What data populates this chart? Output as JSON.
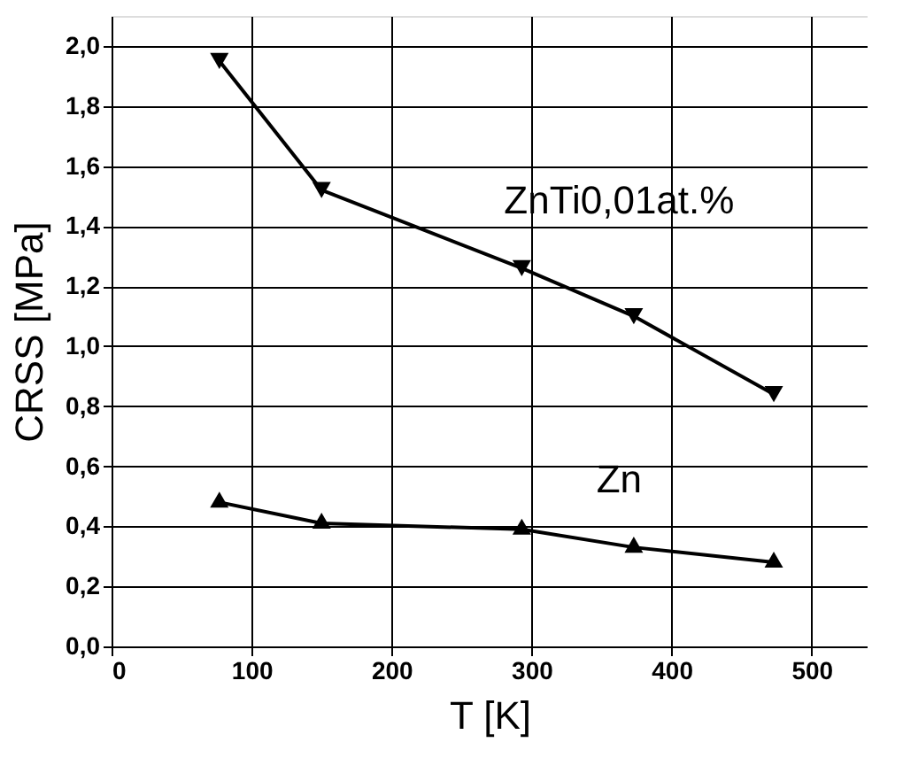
{
  "chart_data": {
    "type": "line",
    "xlabel": "T [K]",
    "ylabel": "CRSS [MPa]",
    "x": [
      77,
      150,
      293,
      373,
      473
    ],
    "series": [
      {
        "name": "ZnTi0,01at.%",
        "color": "#000000",
        "marker": "triangle-down",
        "values": [
          1.95,
          1.52,
          1.26,
          1.1,
          0.84
        ]
      },
      {
        "name": "Zn",
        "color": "#000000",
        "marker": "triangle",
        "values": [
          0.48,
          0.41,
          0.39,
          0.33,
          0.28
        ]
      }
    ],
    "xlim": [
      0,
      540
    ],
    "xticks": [
      0,
      100,
      200,
      300,
      400,
      500
    ],
    "ylim": [
      0,
      2.1
    ],
    "yticks": [
      {
        "value": 0,
        "label": "0,0"
      },
      {
        "value": 0.2,
        "label": "0,2"
      },
      {
        "value": 0.4,
        "label": "0,4"
      },
      {
        "value": 0.6,
        "label": "0,6"
      },
      {
        "value": 0.8,
        "label": "0,8"
      },
      {
        "value": 1.0,
        "label": "1,0"
      },
      {
        "value": 1.2,
        "label": "1,2"
      },
      {
        "value": 1.4,
        "label": "1,4"
      },
      {
        "value": 1.6,
        "label": "1,6"
      },
      {
        "value": 1.8,
        "label": "1,8"
      },
      {
        "value": 2.0,
        "label": "2,0"
      }
    ],
    "grid": true,
    "legend": false,
    "line_style": "solid"
  }
}
